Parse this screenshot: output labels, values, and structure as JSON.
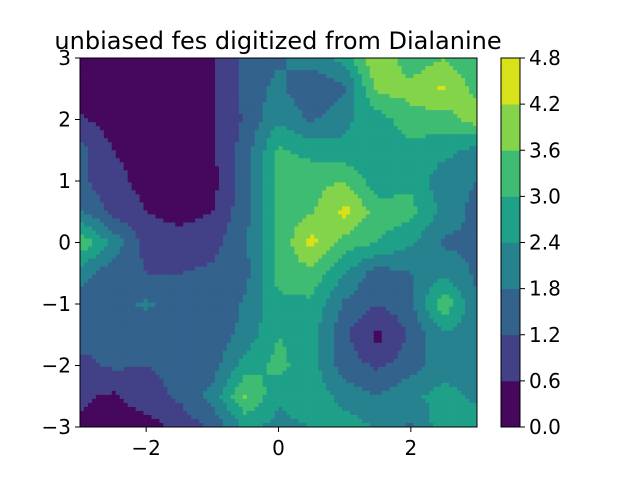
{
  "chart_data": {
    "type": "heatmap",
    "title": "unbiased fes digitized from Dialanine",
    "xlabel": "",
    "ylabel": "",
    "xlim": [
      -3,
      3
    ],
    "ylim": [
      -3,
      3
    ],
    "xticks": [
      -2,
      0,
      2
    ],
    "yticks": [
      -3,
      -2,
      -1,
      0,
      1,
      2,
      3
    ],
    "xtick_labels": [
      "−2",
      "0",
      "2"
    ],
    "ytick_labels": [
      "−3",
      "−2",
      "−1",
      "0",
      "1",
      "2",
      "3"
    ],
    "grid": false,
    "colorbar": {
      "levels": [
        0.0,
        0.6,
        1.2,
        1.8,
        2.4,
        3.0,
        3.6,
        4.2,
        4.8
      ],
      "labels": [
        "0.0",
        "0.6",
        "1.2",
        "1.8",
        "2.4",
        "3.0",
        "3.6",
        "4.2",
        "4.8"
      ],
      "colors": [
        "#46085c",
        "#424086",
        "#33638d",
        "#26828e",
        "#1fa088",
        "#3fbc73",
        "#84d44b",
        "#d8e219"
      ]
    },
    "z_grid": {
      "x": [
        -3,
        -2.5,
        -2,
        -1.5,
        -1,
        -0.5,
        0,
        0.5,
        1,
        1.5,
        2,
        2.5,
        3
      ],
      "y": [
        3,
        2.5,
        2,
        1.5,
        1,
        0.5,
        0,
        -0.5,
        -1,
        -1.5,
        -2,
        -2.5,
        -3
      ],
      "z": [
        [
          0.3,
          0.3,
          0.3,
          0.3,
          0.5,
          1.4,
          1.7,
          2.1,
          2.6,
          4.2,
          3.2,
          3.6,
          3.0
        ],
        [
          0.3,
          0.3,
          0.3,
          0.3,
          0.5,
          1.4,
          2.0,
          1.2,
          1.7,
          3.8,
          3.8,
          4.3,
          3.4
        ],
        [
          0.7,
          0.3,
          0.3,
          0.3,
          0.5,
          1.3,
          2.3,
          1.7,
          2.3,
          2.7,
          3.4,
          3.3,
          3.9
        ],
        [
          1.4,
          0.6,
          0.3,
          0.3,
          0.5,
          1.5,
          3.1,
          2.8,
          2.5,
          2.4,
          2.8,
          2.6,
          2.2
        ],
        [
          1.3,
          0.8,
          0.4,
          0.3,
          0.4,
          1.5,
          3.3,
          3.4,
          3.6,
          2.6,
          2.9,
          2.0,
          1.8
        ],
        [
          1.9,
          1.0,
          0.6,
          0.4,
          0.6,
          1.6,
          3.3,
          3.5,
          4.4,
          3.3,
          3.2,
          2.2,
          1.6
        ],
        [
          3.5,
          2.2,
          1.0,
          0.8,
          1.0,
          1.7,
          3.1,
          4.4,
          3.3,
          3.0,
          2.5,
          1.7,
          1.7
        ],
        [
          2.1,
          1.4,
          1.2,
          1.2,
          1.3,
          1.6,
          3.3,
          3.4,
          2.4,
          1.5,
          1.8,
          2.2,
          1.7
        ],
        [
          1.4,
          1.6,
          1.9,
          1.5,
          1.3,
          1.9,
          2.8,
          2.9,
          1.7,
          1.2,
          1.6,
          3.5,
          1.8
        ],
        [
          1.5,
          1.4,
          1.3,
          1.4,
          1.4,
          2.0,
          3.0,
          2.6,
          1.3,
          0.4,
          1.3,
          2.3,
          2.0
        ],
        [
          1.0,
          1.3,
          1.2,
          1.3,
          1.5,
          2.7,
          3.2,
          2.6,
          1.5,
          1.1,
          1.5,
          2.2,
          2.0
        ],
        [
          0.7,
          0.5,
          1.0,
          1.3,
          2.0,
          3.7,
          2.5,
          2.9,
          2.1,
          1.8,
          2.3,
          2.6,
          2.3
        ],
        [
          0.5,
          0.3,
          0.3,
          0.8,
          1.3,
          2.5,
          2.2,
          2.4,
          2.8,
          2.3,
          1.7,
          2.8,
          2.6
        ]
      ]
    }
  }
}
